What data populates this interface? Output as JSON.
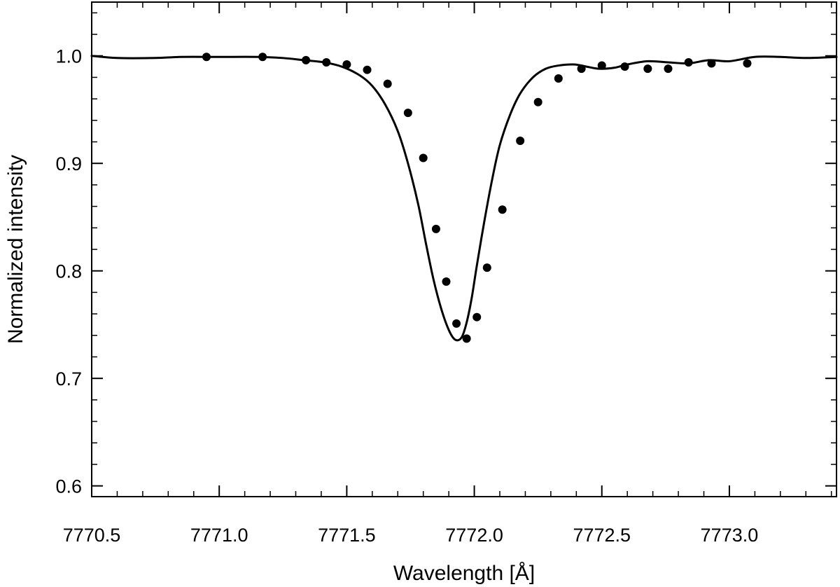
{
  "chart_data": {
    "type": "line",
    "title": "",
    "xlabel": "Wavelength [Å]",
    "ylabel": "Normalized intensity",
    "xlim": [
      7770.5,
      7773.42
    ],
    "ylim": [
      0.59,
      1.05
    ],
    "xticks": [
      7770.5,
      7771.0,
      7771.5,
      7772.0,
      7772.5,
      7773.0
    ],
    "xtick_labels": [
      "7770.5",
      "7771.0",
      "7771.5",
      "7772.0",
      "7772.5",
      "7773.0"
    ],
    "yticks": [
      0.6,
      0.7,
      0.8,
      0.9,
      1.0
    ],
    "ytick_labels": [
      "0.6",
      "0.7",
      "0.8",
      "0.9",
      "1.0"
    ],
    "grid": false,
    "series": [
      {
        "kind": "line",
        "color": "#000000",
        "x": [
          7770.5,
          7770.6,
          7770.75,
          7770.85,
          7771.0,
          7771.15,
          7771.25,
          7771.33,
          7771.41,
          7771.48,
          7771.55,
          7771.6,
          7771.65,
          7771.7,
          7771.74,
          7771.78,
          7771.81,
          7771.84,
          7771.87,
          7771.9,
          7771.925,
          7771.95,
          7771.97,
          7771.99,
          7772.01,
          7772.04,
          7772.07,
          7772.1,
          7772.14,
          7772.18,
          7772.23,
          7772.28,
          7772.33,
          7772.39,
          7772.44,
          7772.49,
          7772.55,
          7772.6,
          7772.68,
          7772.76,
          7772.84,
          7772.92,
          7773.0,
          7773.1,
          7773.2,
          7773.3,
          7773.42
        ],
        "y": [
          1.0,
          0.998,
          0.998,
          0.999,
          0.999,
          0.999,
          0.998,
          0.996,
          0.994,
          0.99,
          0.982,
          0.972,
          0.955,
          0.93,
          0.9,
          0.862,
          0.826,
          0.792,
          0.765,
          0.745,
          0.736,
          0.738,
          0.752,
          0.775,
          0.805,
          0.847,
          0.885,
          0.917,
          0.945,
          0.965,
          0.98,
          0.988,
          0.991,
          0.992,
          0.99,
          0.988,
          0.989,
          0.992,
          0.995,
          0.994,
          0.993,
          0.996,
          0.995,
          0.999,
          0.999,
          0.998,
          0.999
        ]
      },
      {
        "kind": "scatter",
        "color": "#000000",
        "x": [
          7770.95,
          7771.17,
          7771.34,
          7771.42,
          7771.5,
          7771.58,
          7771.66,
          7771.74,
          7771.8,
          7771.85,
          7771.89,
          7771.93,
          7771.97,
          7772.01,
          7772.05,
          7772.11,
          7772.18,
          7772.25,
          7772.33,
          7772.42,
          7772.5,
          7772.59,
          7772.68,
          7772.76,
          7772.84,
          7772.93,
          7773.07
        ],
        "y": [
          0.999,
          0.999,
          0.996,
          0.994,
          0.992,
          0.987,
          0.974,
          0.947,
          0.905,
          0.839,
          0.79,
          0.751,
          0.737,
          0.757,
          0.803,
          0.857,
          0.921,
          0.957,
          0.979,
          0.988,
          0.991,
          0.99,
          0.988,
          0.988,
          0.994,
          0.993,
          0.993
        ]
      }
    ]
  }
}
